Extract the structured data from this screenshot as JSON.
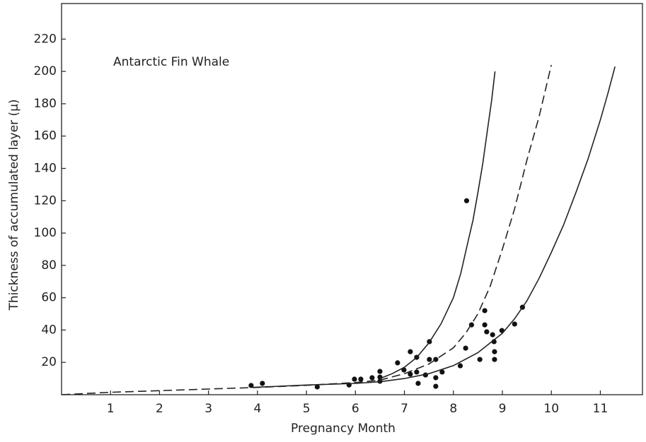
{
  "chart_data": {
    "type": "scatter",
    "annotations": [
      "Antarctic Fin Whale"
    ],
    "x_label": "Pregnancy Month",
    "y_label": "Thickness of accumulated layer (μ)",
    "xlim": [
      0,
      11.86
    ],
    "ylim": [
      0,
      242
    ],
    "xticks": [
      1,
      2,
      3,
      4,
      5,
      6,
      7,
      8,
      9,
      10,
      11
    ],
    "yticks": [
      20,
      40,
      60,
      80,
      100,
      120,
      140,
      160,
      180,
      200,
      220
    ],
    "grid": false,
    "series": [
      {
        "mode": "markers",
        "color": "#111",
        "x": [
          3.87,
          4.1,
          5.22,
          5.87,
          5.98,
          6.11,
          6.34,
          6.5,
          6.5,
          6.5,
          6.86,
          6.99,
          7.12,
          7.12,
          7.25,
          7.25,
          7.28,
          7.43,
          7.51,
          7.51,
          7.64,
          7.64,
          7.64,
          7.77,
          8.14,
          8.25,
          8.27,
          8.37,
          8.54,
          8.64,
          8.64,
          8.68,
          8.8,
          8.83,
          8.84,
          8.84,
          8.99,
          9.25,
          9.41
        ],
        "y": [
          5.7,
          7,
          4.8,
          6,
          9.6,
          9.6,
          10.5,
          14.4,
          10.9,
          8.3,
          19.7,
          15.3,
          26.6,
          12.7,
          23.1,
          14,
          7,
          12.2,
          32.8,
          21.8,
          21.8,
          5.2,
          10.5,
          14,
          17.9,
          28.8,
          120,
          43.2,
          21.8,
          52,
          43.2,
          38.9,
          37.1,
          32.8,
          26.6,
          21.8,
          39.7,
          43.7,
          54.1
        ]
      },
      {
        "mode": "line",
        "dash": "solid",
        "color": "#222",
        "x": [
          6.5,
          6.75,
          7,
          7.25,
          7.5,
          7.75,
          8,
          8.15,
          8.3,
          8.4,
          8.5,
          8.6,
          8.7,
          8.78,
          8.85
        ],
        "y": [
          10,
          13,
          17,
          23,
          32,
          44,
          60,
          75,
          95,
          108,
          125,
          143,
          165,
          182,
          200
        ]
      },
      {
        "mode": "line",
        "dash": "dashed",
        "color": "#222",
        "x": [
          0,
          1,
          2,
          3,
          4,
          5,
          6,
          6.5,
          7,
          7.5,
          8,
          8.25,
          8.5,
          8.75,
          9,
          9.25,
          9.5,
          9.75,
          10
        ],
        "y": [
          0,
          1.5,
          2.5,
          3.5,
          4.5,
          5.8,
          7.5,
          9,
          13,
          19,
          29,
          38,
          50,
          67,
          90,
          115,
          145,
          172,
          204
        ]
      },
      {
        "mode": "line",
        "dash": "solid",
        "color": "#222",
        "x": [
          3.9,
          5,
          6,
          6.5,
          7,
          7.5,
          8,
          8.5,
          9,
          9.25,
          9.5,
          9.75,
          10,
          10.25,
          10.5,
          10.75,
          11,
          11.15,
          11.3
        ],
        "y": [
          4.5,
          6,
          7,
          8,
          10,
          13,
          18,
          26,
          38,
          47,
          58,
          72,
          88,
          105,
          125,
          146,
          170,
          186,
          203
        ]
      }
    ]
  }
}
